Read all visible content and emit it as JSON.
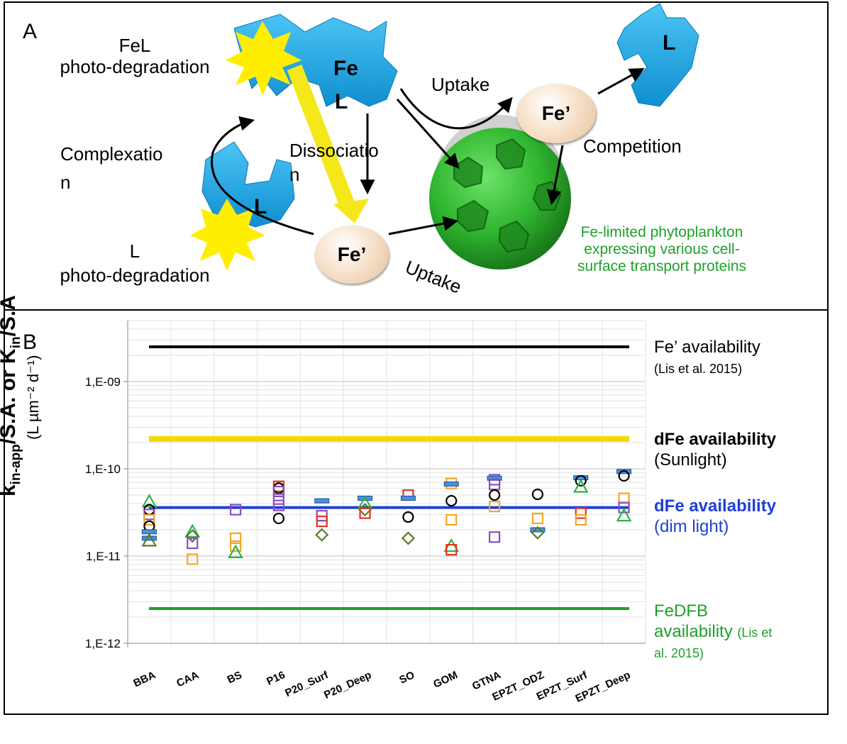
{
  "panel_a": {
    "letter": "A",
    "fel_photodeg_1": "FeL",
    "fel_photodeg_2": "photo-degradation",
    "fe_l_top_1": "Fe",
    "fe_l_top_2": "L",
    "uptake_top": "Uptake",
    "fe_prime_right": "Fe’",
    "l_right": "L",
    "competition": "Competition",
    "complexation_1": "Complexatio",
    "complexation_2": "n",
    "dissociation_1": "Dissociatio",
    "dissociation_2": "n",
    "l_left": "L",
    "l_photodeg_1": "L",
    "l_photodeg_2": "photo-degradation",
    "fe_prime_center": "Fe’",
    "uptake_bottom": "Uptake",
    "phyto_1": "Fe-limited phytoplankton",
    "phyto_2": "expressing various cell-",
    "phyto_3": "surface transport proteins",
    "colors": {
      "ligand": "#1aa6e8",
      "sun": "#ffee00",
      "cell": "#2fb52f",
      "arrow_yellow": "#f4e81a"
    }
  },
  "panel_b": {
    "letter": "B",
    "ylabel_main": "k",
    "ylabel_sub1": "in-app",
    "ylabel_mid": "/S.A.  or  K",
    "ylabel_sub2": "in",
    "ylabel_end": "/S.A",
    "ylabel_units": "(L µm⁻² d⁻¹)",
    "legend": {
      "fe_prime": "Fe’ availability",
      "fe_prime_ref": "(Lis et al. 2015)",
      "dfe_sun": "dFe availability",
      "dfe_sun_sub": "(Sunlight)",
      "dfe_dim": "dFe availability",
      "dfe_dim_sub": "(dim light)",
      "fedfb_1": "FeDFB",
      "fedfb_2": "availability",
      "fedfb_ref_1": "(Lis et",
      "fedfb_ref_2": "al. 2015)"
    }
  },
  "chart_data": {
    "type": "scatter",
    "y_scale": "log",
    "ylim": [
      1e-12,
      5e-09
    ],
    "yticks": [
      "1,E-12",
      "1,E-11",
      "1,E-10",
      "1,E-09"
    ],
    "grid": true,
    "legend_position": "right",
    "categories": [
      "BBA",
      "CAA",
      "BS",
      "P16",
      "P20_Surf",
      "P20_Deep",
      "SO",
      "GOM",
      "GTNA",
      "EPZT_ODZ",
      "EPZT_Surf",
      "EPZT_Deep"
    ],
    "reference_lines": [
      {
        "label": "Fe’ availability",
        "value": 2.5e-09,
        "color": "#000000"
      },
      {
        "label": "dFe availability (Sunlight)",
        "value": 2.2e-10,
        "color": "#f5d800"
      },
      {
        "label": "dFe availability (dim light)",
        "value": 3.6e-11,
        "color": "#1f3fd6"
      },
      {
        "label": "FeDFB availability",
        "value": 2.5e-12,
        "color": "#1fa12a"
      }
    ],
    "points": [
      {
        "cat": "BBA",
        "marker": "triangle",
        "color": "#2db34a",
        "value": 4.2e-11
      },
      {
        "cat": "BBA",
        "marker": "circle",
        "color": "#000000",
        "value": 3.4e-11
      },
      {
        "cat": "BBA",
        "marker": "square",
        "color": "#8a4fbf",
        "value": 3e-11
      },
      {
        "cat": "BBA",
        "marker": "square",
        "color": "#f5a623",
        "value": 2.6e-11
      },
      {
        "cat": "BBA",
        "marker": "circle",
        "color": "#000000",
        "value": 2.2e-11
      },
      {
        "cat": "BBA",
        "marker": "dash",
        "color": "#4a8fd9",
        "value": 1.9e-11
      },
      {
        "cat": "BBA",
        "marker": "dash",
        "color": "#4a8fd9",
        "value": 1.6e-11
      },
      {
        "cat": "BBA",
        "marker": "triangle",
        "color": "#5a7a2a",
        "value": 1.5e-11
      },
      {
        "cat": "CAA",
        "marker": "triangle",
        "color": "#2db34a",
        "value": 1.9e-11
      },
      {
        "cat": "CAA",
        "marker": "diamond",
        "color": "#5a7a2a",
        "value": 1.7e-11
      },
      {
        "cat": "CAA",
        "marker": "square",
        "color": "#8a4fbf",
        "value": 1.4e-11
      },
      {
        "cat": "CAA",
        "marker": "square",
        "color": "#f5a623",
        "value": 9.2e-12
      },
      {
        "cat": "BS",
        "marker": "square",
        "color": "#8a4fbf",
        "value": 3.4e-11
      },
      {
        "cat": "BS",
        "marker": "square",
        "color": "#f5a623",
        "value": 1.6e-11
      },
      {
        "cat": "BS",
        "marker": "square",
        "color": "#f5a623",
        "value": 1.3e-11
      },
      {
        "cat": "BS",
        "marker": "triangle",
        "color": "#2db34a",
        "value": 1.1e-11
      },
      {
        "cat": "P16",
        "marker": "square",
        "color": "#e8321f",
        "value": 6.3e-11
      },
      {
        "cat": "P16",
        "marker": "circle",
        "color": "#000000",
        "value": 6e-11
      },
      {
        "cat": "P16",
        "marker": "square",
        "color": "#8a4fbf",
        "value": 5.5e-11
      },
      {
        "cat": "P16",
        "marker": "square",
        "color": "#8a4fbf",
        "value": 4.5e-11
      },
      {
        "cat": "P16",
        "marker": "square",
        "color": "#8a4fbf",
        "value": 3.8e-11
      },
      {
        "cat": "P16",
        "marker": "circle",
        "color": "#000000",
        "value": 2.7e-11
      },
      {
        "cat": "P20_Surf",
        "marker": "dash",
        "color": "#4a8fd9",
        "value": 4.3e-11
      },
      {
        "cat": "P20_Surf",
        "marker": "square",
        "color": "#8a4fbf",
        "value": 2.9e-11
      },
      {
        "cat": "P20_Surf",
        "marker": "square",
        "color": "#e8321f",
        "value": 2.5e-11
      },
      {
        "cat": "P20_Surf",
        "marker": "diamond",
        "color": "#5a7a2a",
        "value": 1.75e-11
      },
      {
        "cat": "P20_Deep",
        "marker": "dash",
        "color": "#4a8fd9",
        "value": 4.6e-11
      },
      {
        "cat": "P20_Deep",
        "marker": "triangle",
        "color": "#2db34a",
        "value": 4e-11
      },
      {
        "cat": "P20_Deep",
        "marker": "diamond",
        "color": "#5a7a2a",
        "value": 3.4e-11
      },
      {
        "cat": "P20_Deep",
        "marker": "square",
        "color": "#e8321f",
        "value": 3.1e-11
      },
      {
        "cat": "SO",
        "marker": "square",
        "color": "#e8321f",
        "value": 5e-11
      },
      {
        "cat": "SO",
        "marker": "dash",
        "color": "#4a8fd9",
        "value": 4.6e-11
      },
      {
        "cat": "SO",
        "marker": "circle",
        "color": "#000000",
        "value": 2.8e-11
      },
      {
        "cat": "SO",
        "marker": "diamond",
        "color": "#5a7a2a",
        "value": 1.6e-11
      },
      {
        "cat": "GOM",
        "marker": "square",
        "color": "#f5a623",
        "value": 6.8e-11
      },
      {
        "cat": "GOM",
        "marker": "dash",
        "color": "#4a8fd9",
        "value": 6.7e-11
      },
      {
        "cat": "GOM",
        "marker": "circle",
        "color": "#000000",
        "value": 4.3e-11
      },
      {
        "cat": "GOM",
        "marker": "square",
        "color": "#f5a623",
        "value": 2.6e-11
      },
      {
        "cat": "GOM",
        "marker": "triangle",
        "color": "#2db34a",
        "value": 1.3e-11
      },
      {
        "cat": "GOM",
        "marker": "square",
        "color": "#e8321f",
        "value": 1.18e-11
      },
      {
        "cat": "GTNA",
        "marker": "square",
        "color": "#8a4fbf",
        "value": 7.5e-11
      },
      {
        "cat": "GTNA",
        "marker": "dash",
        "color": "#4a8fd9",
        "value": 7.8e-11
      },
      {
        "cat": "GTNA",
        "marker": "square",
        "color": "#8a4fbf",
        "value": 6.6e-11
      },
      {
        "cat": "GTNA",
        "marker": "circle",
        "color": "#000000",
        "value": 5e-11
      },
      {
        "cat": "GTNA",
        "marker": "square",
        "color": "#f5a623",
        "value": 3.7e-11
      },
      {
        "cat": "GTNA",
        "marker": "square",
        "color": "#8a4fbf",
        "value": 1.65e-11
      },
      {
        "cat": "EPZT_ODZ",
        "marker": "circle",
        "color": "#000000",
        "value": 5.1e-11
      },
      {
        "cat": "EPZT_ODZ",
        "marker": "square",
        "color": "#f5a623",
        "value": 2.7e-11
      },
      {
        "cat": "EPZT_ODZ",
        "marker": "dash",
        "color": "#4a8fd9",
        "value": 2e-11
      },
      {
        "cat": "EPZT_ODZ",
        "marker": "diamond",
        "color": "#5a7a2a",
        "value": 1.85e-11
      },
      {
        "cat": "EPZT_Surf",
        "marker": "dash",
        "color": "#4a8fd9",
        "value": 7.9e-11
      },
      {
        "cat": "EPZT_Surf",
        "marker": "circle",
        "color": "#000000",
        "value": 7.3e-11
      },
      {
        "cat": "EPZT_Surf",
        "marker": "triangle",
        "color": "#2db34a",
        "value": 6.2e-11
      },
      {
        "cat": "EPZT_Surf",
        "marker": "square",
        "color": "#e8321f",
        "value": 3.1e-11
      },
      {
        "cat": "EPZT_Surf",
        "marker": "square",
        "color": "#f5a623",
        "value": 2.6e-11
      },
      {
        "cat": "EPZT_Deep",
        "marker": "dash",
        "color": "#4a8fd9",
        "value": 9.3e-11
      },
      {
        "cat": "EPZT_Deep",
        "marker": "circle",
        "color": "#000000",
        "value": 8.3e-11
      },
      {
        "cat": "EPZT_Deep",
        "marker": "square",
        "color": "#f5a623",
        "value": 4.6e-11
      },
      {
        "cat": "EPZT_Deep",
        "marker": "square",
        "color": "#8a4fbf",
        "value": 3.6e-11
      },
      {
        "cat": "EPZT_Deep",
        "marker": "triangle",
        "color": "#2db34a",
        "value": 2.9e-11
      }
    ]
  }
}
